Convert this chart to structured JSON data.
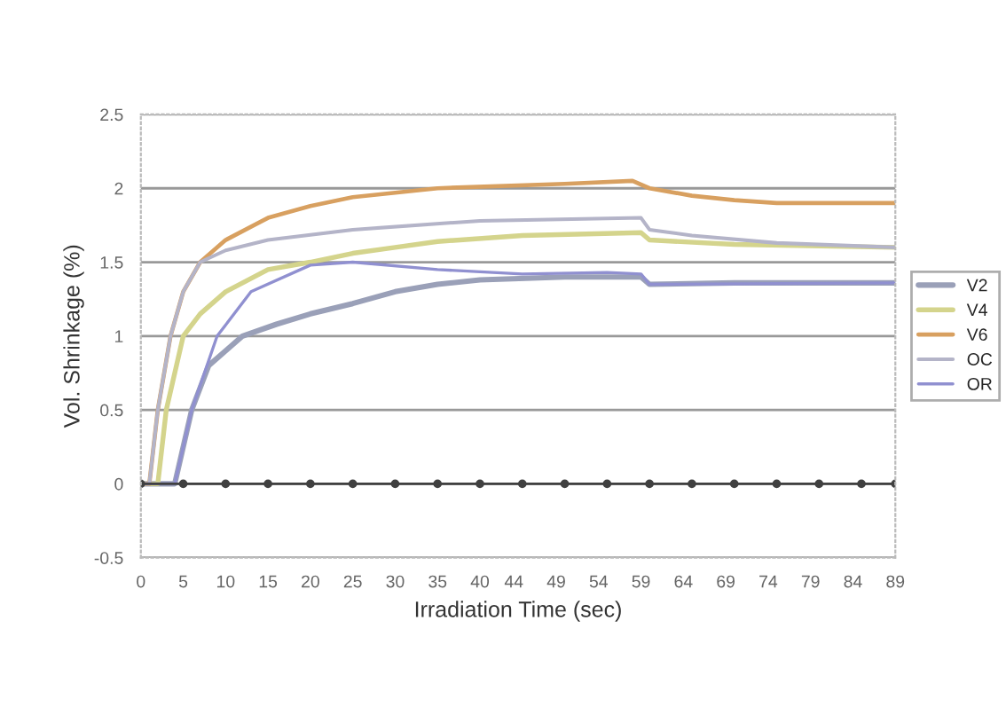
{
  "chart_data": {
    "type": "line",
    "xlabel": "Irradiation Time (sec)",
    "ylabel": "Vol. Shrinkage (%)",
    "xlim": [
      0,
      89
    ],
    "xticks": [
      0,
      5,
      10,
      15,
      20,
      25,
      30,
      35,
      40,
      44,
      49,
      54,
      59,
      64,
      69,
      74,
      79,
      84,
      89
    ],
    "ylim": [
      -0.5,
      2.5
    ],
    "yticks": [
      -0.5,
      0,
      0.5,
      1,
      1.5,
      2,
      2.5
    ],
    "grid": "y",
    "legend": "right",
    "marker": "none",
    "series": [
      {
        "name": "V2",
        "color": "#9aa0b8",
        "x": [
          0,
          4,
          6,
          8,
          12,
          16,
          20,
          25,
          30,
          35,
          40,
          50,
          59,
          60,
          70,
          89
        ],
        "values": [
          0,
          0,
          0.5,
          0.8,
          1.0,
          1.08,
          1.15,
          1.22,
          1.3,
          1.35,
          1.38,
          1.4,
          1.4,
          1.35,
          1.36,
          1.36
        ]
      },
      {
        "name": "V4",
        "color": "#d4d48c",
        "x": [
          0,
          2,
          3,
          5,
          7,
          10,
          15,
          20,
          25,
          30,
          35,
          45,
          59,
          60,
          70,
          89
        ],
        "values": [
          0,
          0,
          0.5,
          1.0,
          1.15,
          1.3,
          1.45,
          1.5,
          1.56,
          1.6,
          1.64,
          1.68,
          1.7,
          1.65,
          1.62,
          1.6
        ]
      },
      {
        "name": "V6",
        "color": "#d8a060",
        "x": [
          0,
          1,
          2,
          3.5,
          5,
          7,
          10,
          15,
          20,
          25,
          35,
          50,
          58,
          60,
          65,
          70,
          75,
          89
        ],
        "values": [
          0,
          0,
          0.5,
          1.0,
          1.3,
          1.5,
          1.65,
          1.8,
          1.88,
          1.94,
          2.0,
          2.03,
          2.05,
          2.0,
          1.95,
          1.92,
          1.9,
          1.9
        ]
      },
      {
        "name": "OC",
        "color": "#b4b4c8",
        "x": [
          0,
          1,
          2,
          3.5,
          5,
          7,
          10,
          15,
          25,
          40,
          59,
          60,
          65,
          75,
          89
        ],
        "values": [
          0,
          0,
          0.5,
          1.0,
          1.3,
          1.5,
          1.58,
          1.65,
          1.72,
          1.78,
          1.8,
          1.72,
          1.68,
          1.63,
          1.6
        ]
      },
      {
        "name": "OR",
        "color": "#9090d0",
        "x": [
          0,
          4,
          6,
          9,
          13,
          20,
          25,
          35,
          45,
          55,
          59,
          60,
          89
        ],
        "values": [
          0,
          0,
          0.5,
          1.0,
          1.3,
          1.48,
          1.5,
          1.45,
          1.42,
          1.43,
          1.42,
          1.35,
          1.36
        ]
      },
      {
        "color": "#404040",
        "marker": "circle",
        "x": [
          0,
          5,
          10,
          15,
          20,
          25,
          30,
          35,
          40,
          45,
          50,
          55,
          60,
          65,
          70,
          75,
          80,
          85,
          89
        ],
        "values": [
          0,
          0,
          0,
          0,
          0,
          0,
          0,
          0,
          0,
          0,
          0,
          0,
          0,
          0,
          0,
          0,
          0,
          0,
          0
        ]
      }
    ]
  }
}
